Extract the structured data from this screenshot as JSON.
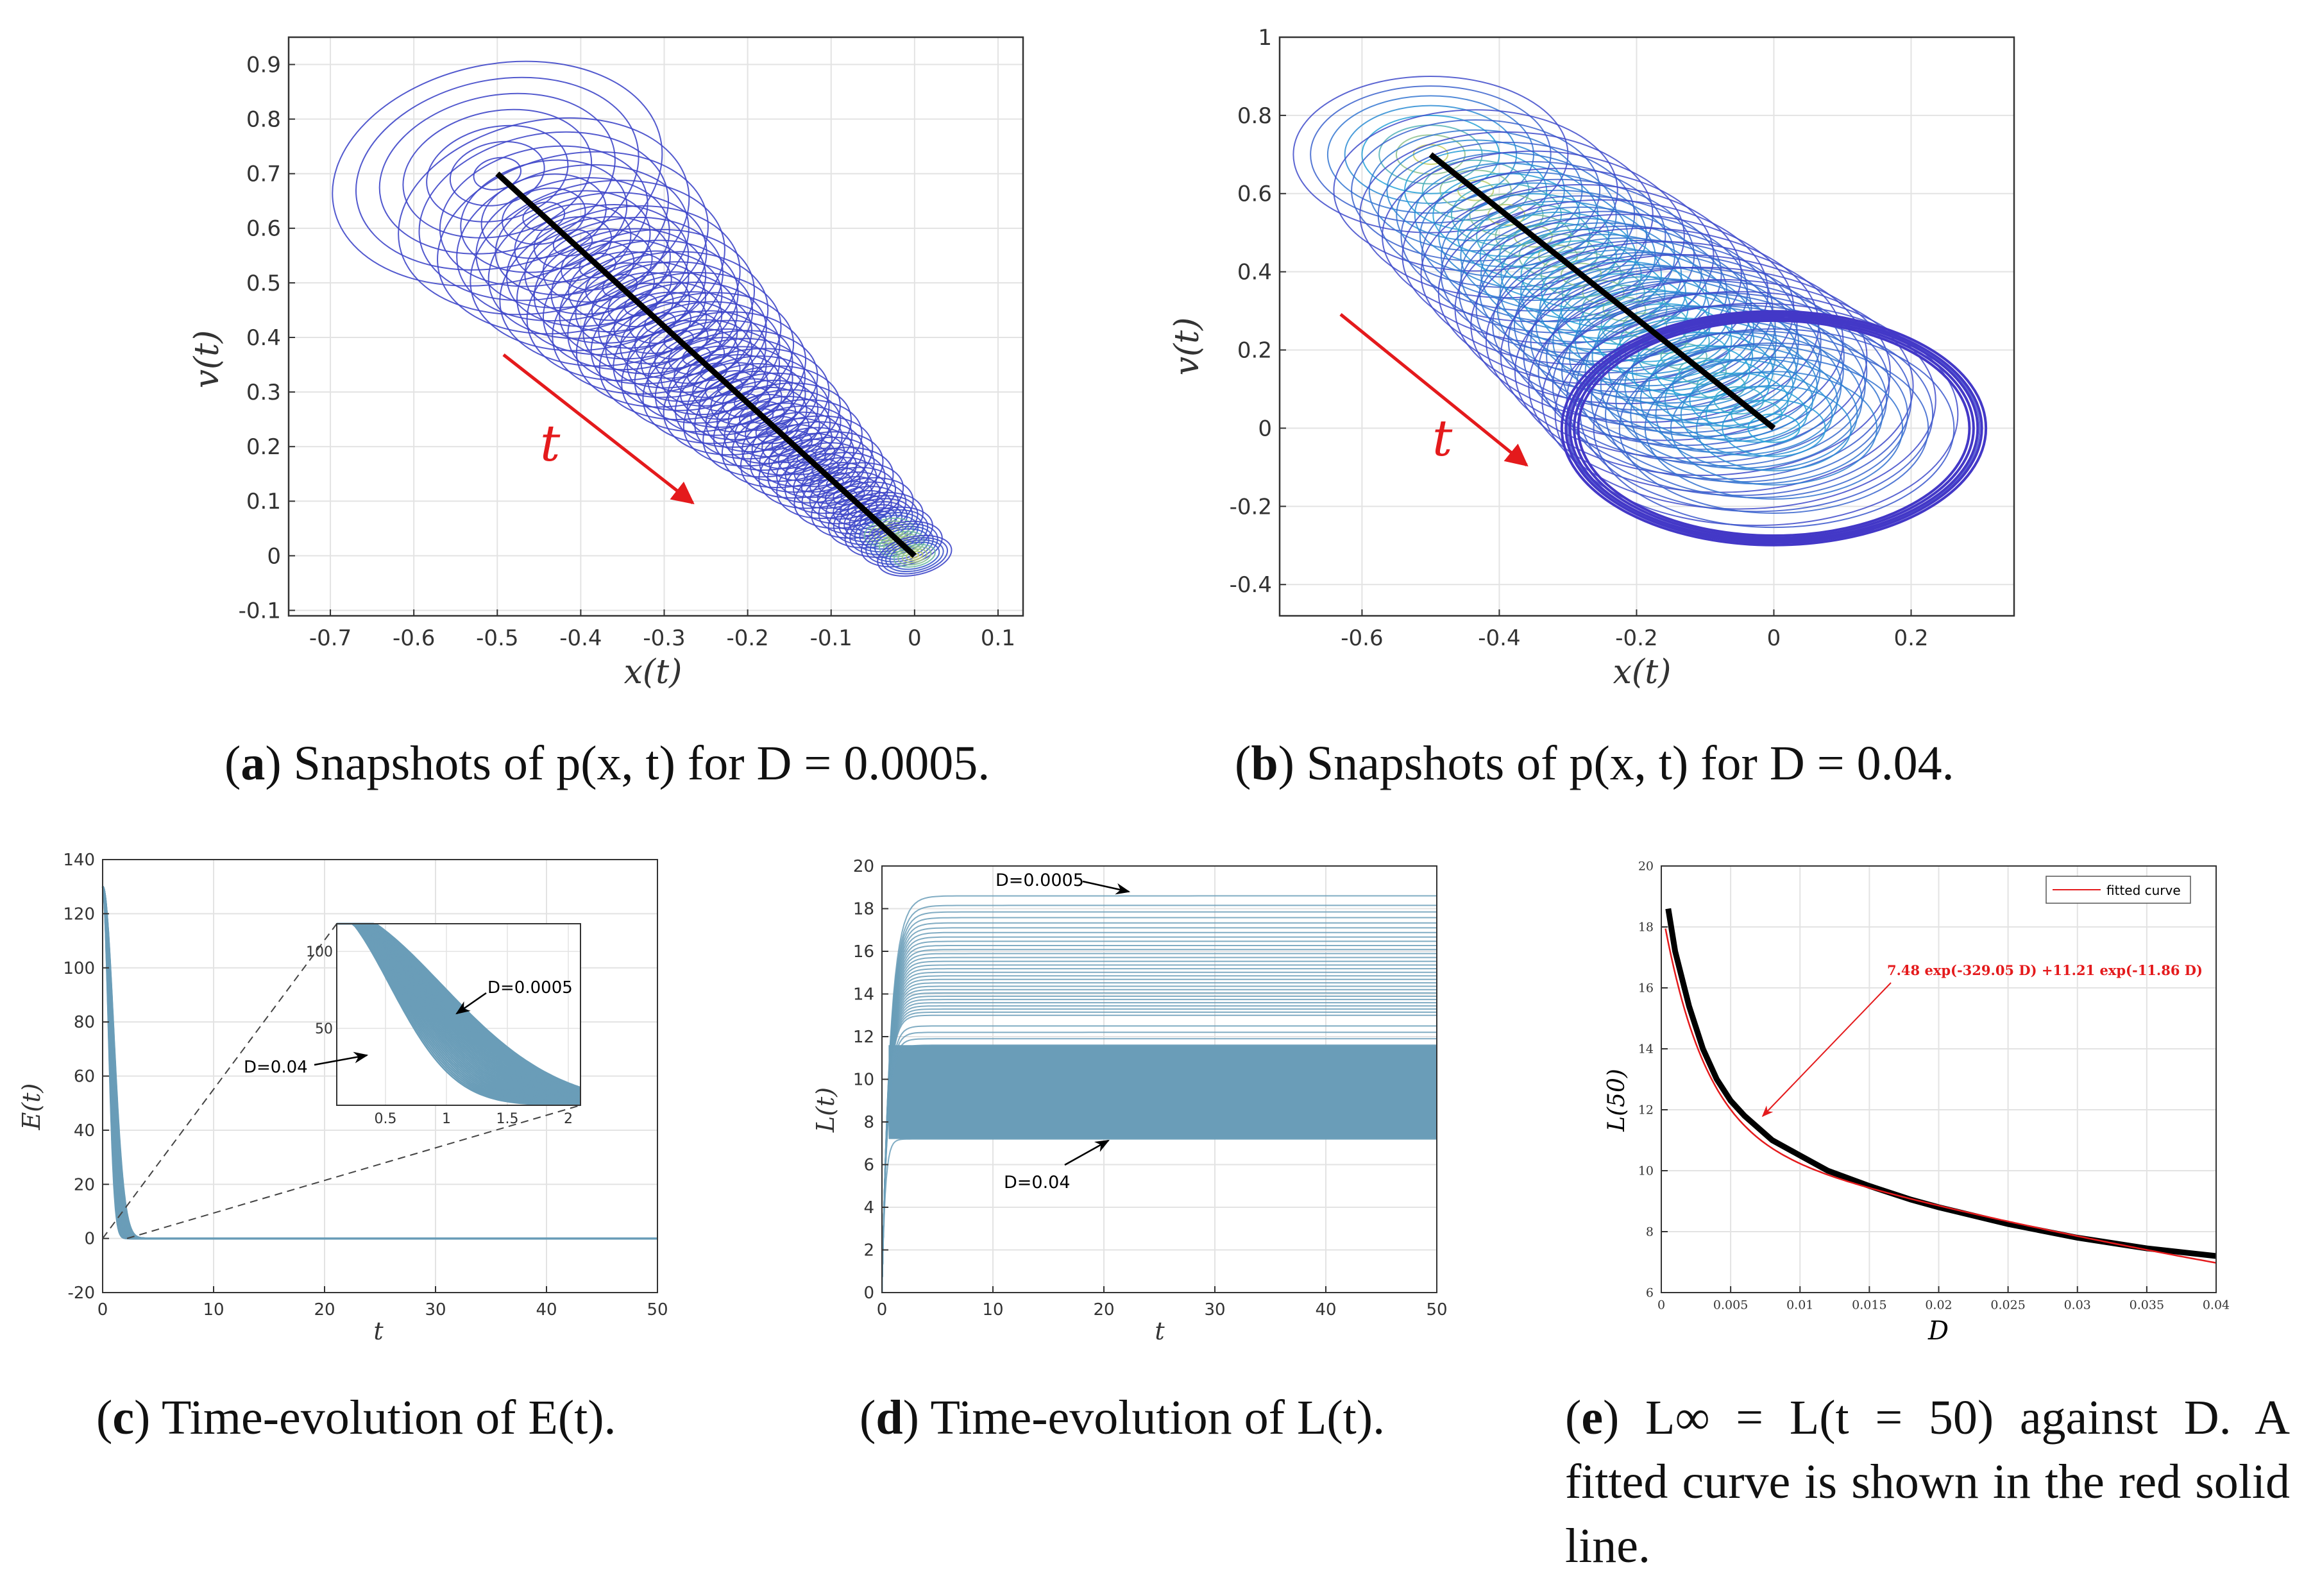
{
  "colors": {
    "grid": "#e3e3e3",
    "axis": "#333333",
    "contourLow": "#4338c7",
    "contourMid": "#25a6d8",
    "contourHigh": "#e8d84a",
    "traj": "#000000",
    "arrow": "#e41a1c",
    "fill": "#6a9db8",
    "fitted": "#e41a1c"
  },
  "chart_data": [
    {
      "id": "a",
      "type": "contour",
      "xlabel": "x(t)",
      "ylabel": "v(t)",
      "xlim": [
        -0.75,
        0.13
      ],
      "ylim": [
        -0.11,
        0.95
      ],
      "xticks": [
        "-0.7",
        "-0.6",
        "-0.5",
        "-0.4",
        "-0.3",
        "-0.2",
        "-0.1",
        "0",
        "0.1"
      ],
      "xtick_values": [
        -0.7,
        -0.6,
        -0.5,
        -0.4,
        -0.3,
        -0.2,
        -0.1,
        0,
        0.1
      ],
      "yticks": [
        "-0.1",
        "0",
        "0.1",
        "0.2",
        "0.3",
        "0.4",
        "0.5",
        "0.6",
        "0.7",
        "0.8",
        "0.9"
      ],
      "ytick_values": [
        -0.1,
        0,
        0.1,
        0.2,
        0.3,
        0.4,
        0.5,
        0.6,
        0.7,
        0.8,
        0.9
      ],
      "trajectory": {
        "start": [
          -0.5,
          0.7
        ],
        "end": [
          0,
          0
        ]
      },
      "annotation": "t",
      "caption_label": "a",
      "caption_text": "Snapshots of p(x, t) for D = 0.0005."
    },
    {
      "id": "b",
      "type": "contour",
      "xlabel": "x(t)",
      "ylabel": "v(t)",
      "xlim": [
        -0.72,
        0.35
      ],
      "ylim": [
        -0.48,
        1.0
      ],
      "xticks": [
        "-0.6",
        "-0.4",
        "-0.2",
        "0",
        "0.2"
      ],
      "xtick_values": [
        -0.6,
        -0.4,
        -0.2,
        0,
        0.2
      ],
      "yticks": [
        "-0.4",
        "-0.2",
        "0",
        "0.2",
        "0.4",
        "0.6",
        "0.8",
        "1"
      ],
      "ytick_values": [
        -0.4,
        -0.2,
        0,
        0.2,
        0.4,
        0.6,
        0.8,
        1
      ],
      "trajectory": {
        "start": [
          -0.5,
          0.7
        ],
        "end": [
          0,
          0
        ]
      },
      "annotation": "t",
      "caption_label": "b",
      "caption_text": "Snapshots of p(x, t) for D = 0.04."
    },
    {
      "id": "c",
      "type": "line",
      "xlabel": "t",
      "ylabel": "E(t)",
      "xlim": [
        0,
        50
      ],
      "ylim": [
        -20,
        140
      ],
      "xticks": [
        "0",
        "10",
        "20",
        "30",
        "40",
        "50"
      ],
      "xtick_values": [
        0,
        10,
        20,
        30,
        40,
        50
      ],
      "yticks": [
        "-20",
        "0",
        "20",
        "40",
        "60",
        "80",
        "100",
        "120",
        "140"
      ],
      "ytick_values": [
        -20,
        0,
        20,
        40,
        60,
        80,
        100,
        120,
        140
      ],
      "series_range": {
        "D_min": 0.0005,
        "D_max": 0.04,
        "peak": 130
      },
      "inset": {
        "xlim": [
          0.1,
          2.1
        ],
        "ylim": [
          0,
          118
        ],
        "xticks": [
          "0.5",
          "1",
          "1.5",
          "2"
        ],
        "xtick_values": [
          0.5,
          1,
          1.5,
          2
        ],
        "yticks": [
          "50",
          "100"
        ],
        "ytick_values": [
          50,
          100
        ],
        "label_top": "D=0.0005",
        "label_bottom": "D=0.04"
      },
      "caption_label": "c",
      "caption_text": "Time-evolution of E(t)."
    },
    {
      "id": "d",
      "type": "line",
      "xlabel": "t",
      "ylabel": "L(t)",
      "xlim": [
        0,
        50
      ],
      "ylim": [
        0,
        20
      ],
      "xticks": [
        "0",
        "10",
        "20",
        "30",
        "40",
        "50"
      ],
      "xtick_values": [
        0,
        10,
        20,
        30,
        40,
        50
      ],
      "yticks": [
        "0",
        "2",
        "4",
        "6",
        "8",
        "10",
        "12",
        "14",
        "16",
        "18",
        "20"
      ],
      "ytick_values": [
        0,
        2,
        4,
        6,
        8,
        10,
        12,
        14,
        16,
        18,
        20
      ],
      "series_range": {
        "max_plateau": 18.6,
        "min_plateau": 7.2
      },
      "label_top": "D=0.0005",
      "label_bottom": "D=0.04",
      "caption_label": "d",
      "caption_text": "Time-evolution of L(t)."
    },
    {
      "id": "e",
      "type": "line",
      "xlabel": "D",
      "ylabel": "L(50)",
      "xlim": [
        0,
        0.04
      ],
      "ylim": [
        6,
        20
      ],
      "xticks": [
        "0",
        "0.005",
        "0.01",
        "0.015",
        "0.02",
        "0.025",
        "0.03",
        "0.035",
        "0.04"
      ],
      "xtick_values": [
        0,
        0.005,
        0.01,
        0.015,
        0.02,
        0.025,
        0.03,
        0.035,
        0.04
      ],
      "yticks": [
        "6",
        "8",
        "10",
        "12",
        "14",
        "16",
        "18",
        "20"
      ],
      "ytick_values": [
        6,
        8,
        10,
        12,
        14,
        16,
        18,
        20
      ],
      "data": {
        "D": [
          0.0005,
          0.001,
          0.002,
          0.003,
          0.004,
          0.005,
          0.006,
          0.007,
          0.008,
          0.01,
          0.012,
          0.015,
          0.018,
          0.02,
          0.025,
          0.03,
          0.035,
          0.04
        ],
        "L50": [
          18.6,
          17.2,
          15.4,
          14.0,
          13.0,
          12.3,
          11.8,
          11.4,
          11.0,
          10.5,
          10.0,
          9.5,
          9.05,
          8.8,
          8.25,
          7.8,
          7.45,
          7.2
        ]
      },
      "fit": {
        "a": 7.48,
        "b": 329.05,
        "c": 11.21,
        "d": 11.86
      },
      "legend": "fitted curve",
      "fit_label": "7.48 exp(-329.05 D) +11.21 exp(-11.86 D)",
      "caption_label": "e",
      "caption_text": "L∞ = L(t = 50) against D. A fitted curve is shown in the red solid line."
    }
  ]
}
